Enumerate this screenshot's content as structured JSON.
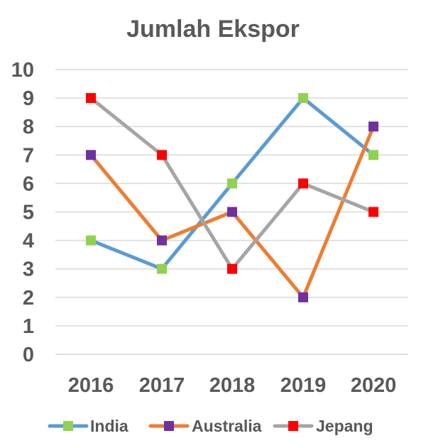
{
  "chart_data": {
    "type": "line",
    "title": "Jumlah Ekspor",
    "xlabel": "",
    "ylabel": "",
    "categories": [
      "2016",
      "2017",
      "2018",
      "2019",
      "2020"
    ],
    "ylim": [
      0,
      10
    ],
    "yticks": [
      "0",
      "1",
      "2",
      "3",
      "4",
      "5",
      "6",
      "7",
      "8",
      "9",
      "10"
    ],
    "grid": true,
    "legend_position": "bottom",
    "series": [
      {
        "name": "India",
        "values": [
          4,
          3,
          6,
          9,
          7
        ],
        "line_color": "#5b9bd5",
        "marker_color": "#92d050"
      },
      {
        "name": "Australia",
        "values": [
          7,
          4,
          5,
          2,
          8
        ],
        "line_color": "#ed7d31",
        "marker_color": "#7030a0"
      },
      {
        "name": "Jepang",
        "values": [
          9,
          7,
          3,
          6,
          5
        ],
        "line_color": "#a5a5a5",
        "marker_color": "#ff0000"
      }
    ]
  }
}
